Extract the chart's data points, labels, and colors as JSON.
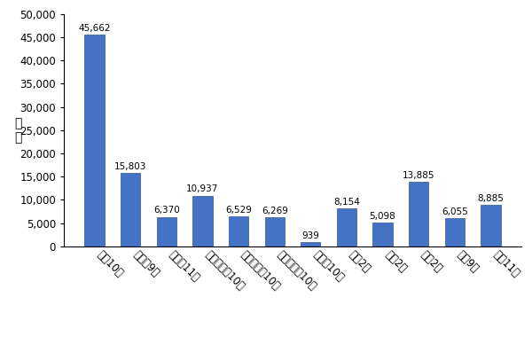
{
  "categories": [
    "堪浜10月",
    "二色浜9月",
    "二色浜11月",
    "マープル北10月",
    "マープル中10月",
    "マープル南10月",
    "サザン10月",
    "笱作2月",
    "淡輪2月",
    "長松2月",
    "長松9月",
    "長松11月"
  ],
  "values": [
    45662,
    15803,
    6370,
    10937,
    6529,
    6269,
    939,
    8154,
    5098,
    13885,
    6055,
    8885
  ],
  "bar_color": "#4472C4",
  "bar_edge_color": "#2F5496",
  "ylabel_top": "個",
  "ylabel_bottom": "数",
  "yticks": [
    0,
    5000,
    10000,
    15000,
    20000,
    25000,
    30000,
    35000,
    40000,
    45000,
    50000
  ],
  "ylim": [
    0,
    50000
  ],
  "label_fontsize": 8.5,
  "value_fontsize": 7.5,
  "ylabel_fontsize": 10,
  "background_color": "#ffffff",
  "plot_bg_color": "#ffffff",
  "bar_width": 0.55,
  "label_rotation": -45,
  "label_ha": "left"
}
